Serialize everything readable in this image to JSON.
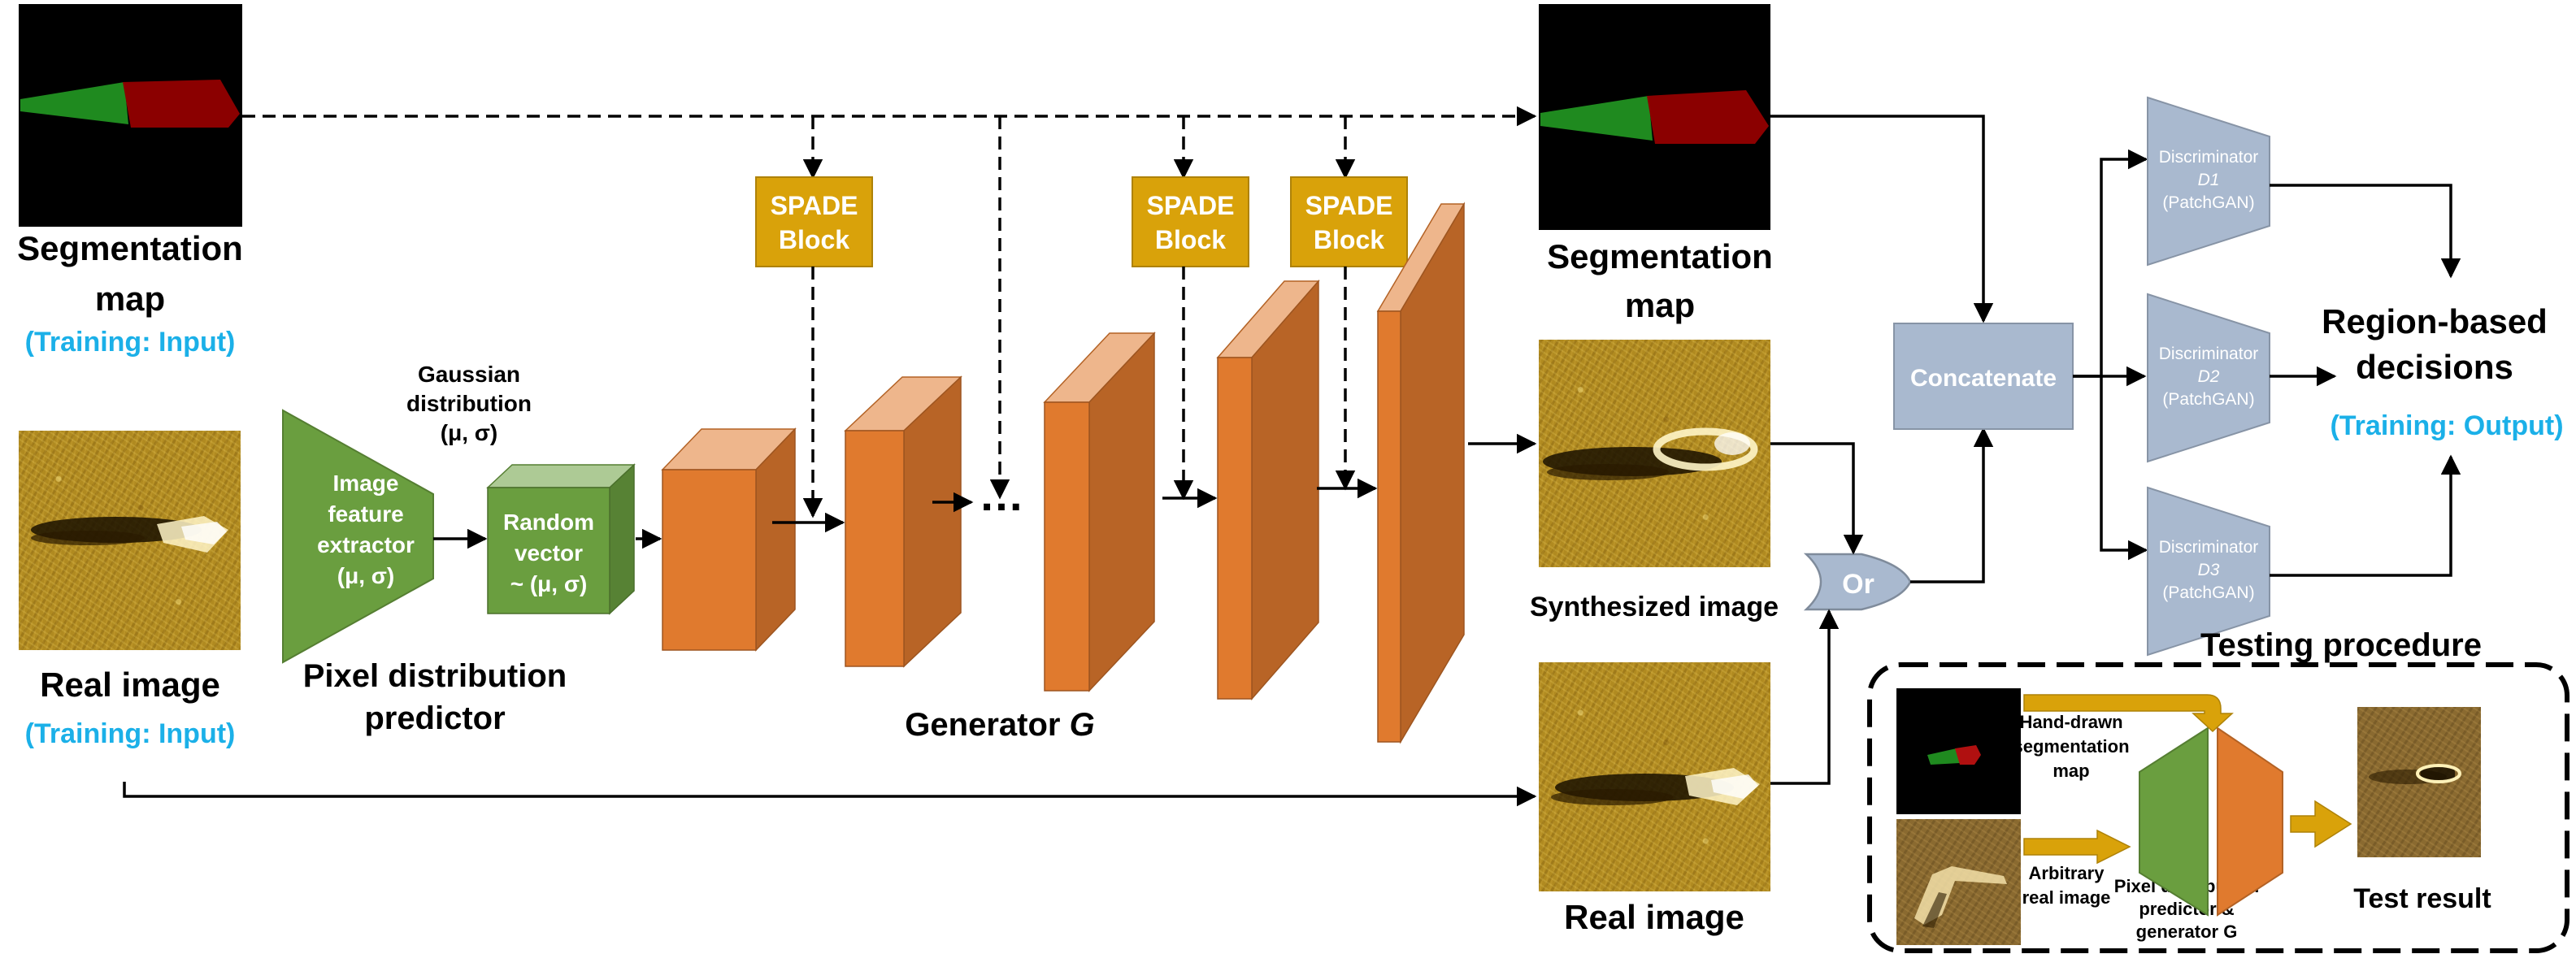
{
  "nodes": {
    "seg_map_input_label": "Segmentation\nmap",
    "seg_map_input_note": "(Training: Input)",
    "real_image_input_label": "Real image",
    "real_image_input_note": "(Training: Input)",
    "feature_extractor_label": "Image\nfeature\nextractor\n(μ, σ)",
    "gaussian_label": "Gaussian\ndistribution\n(μ, σ)",
    "random_vector_label": "Random\nvector\n~ (μ, σ)",
    "pixel_predictor_caption": "Pixel distribution\npredictor",
    "spade_block_label": "SPADE\nBlock",
    "ellipsis": "…",
    "generator_caption_main": "Generator ",
    "generator_caption_var": "G",
    "seg_map_right_label": "Segmentation\nmap",
    "synth_image_label": "Synthesized image",
    "real_image_right_label": "Real image",
    "or_label": "Or",
    "concatenate_label": "Concatenate",
    "discriminators": [
      {
        "title": "Discriminator",
        "id": "D1",
        "sub": "(PatchGAN)"
      },
      {
        "title": "Discriminator",
        "id": "D2",
        "sub": "(PatchGAN)"
      },
      {
        "title": "Discriminator",
        "id": "D3",
        "sub": "(PatchGAN)"
      }
    ],
    "decisions_label": "Region-based\ndecisions",
    "decisions_note": "(Training: Output)",
    "testing_title": "Testing procedure",
    "hand_drawn_label": "Hand-drawn\nsegmentation\nmap",
    "arbitrary_label": "Arbitrary\nreal image",
    "pdp_gen_label": "Pixel distribution\npredictor &\ngenerator G",
    "test_result_label": "Test result"
  },
  "colors": {
    "feature_green": "#6a9e3f",
    "generator_orange": "#e07a2e",
    "spade_gold": "#d9a20a",
    "disc_blue": "#a9b9cf",
    "note_cyan": "#1bb0e8",
    "seg_green": "#1f8a1f",
    "seg_red": "#8b0000"
  }
}
